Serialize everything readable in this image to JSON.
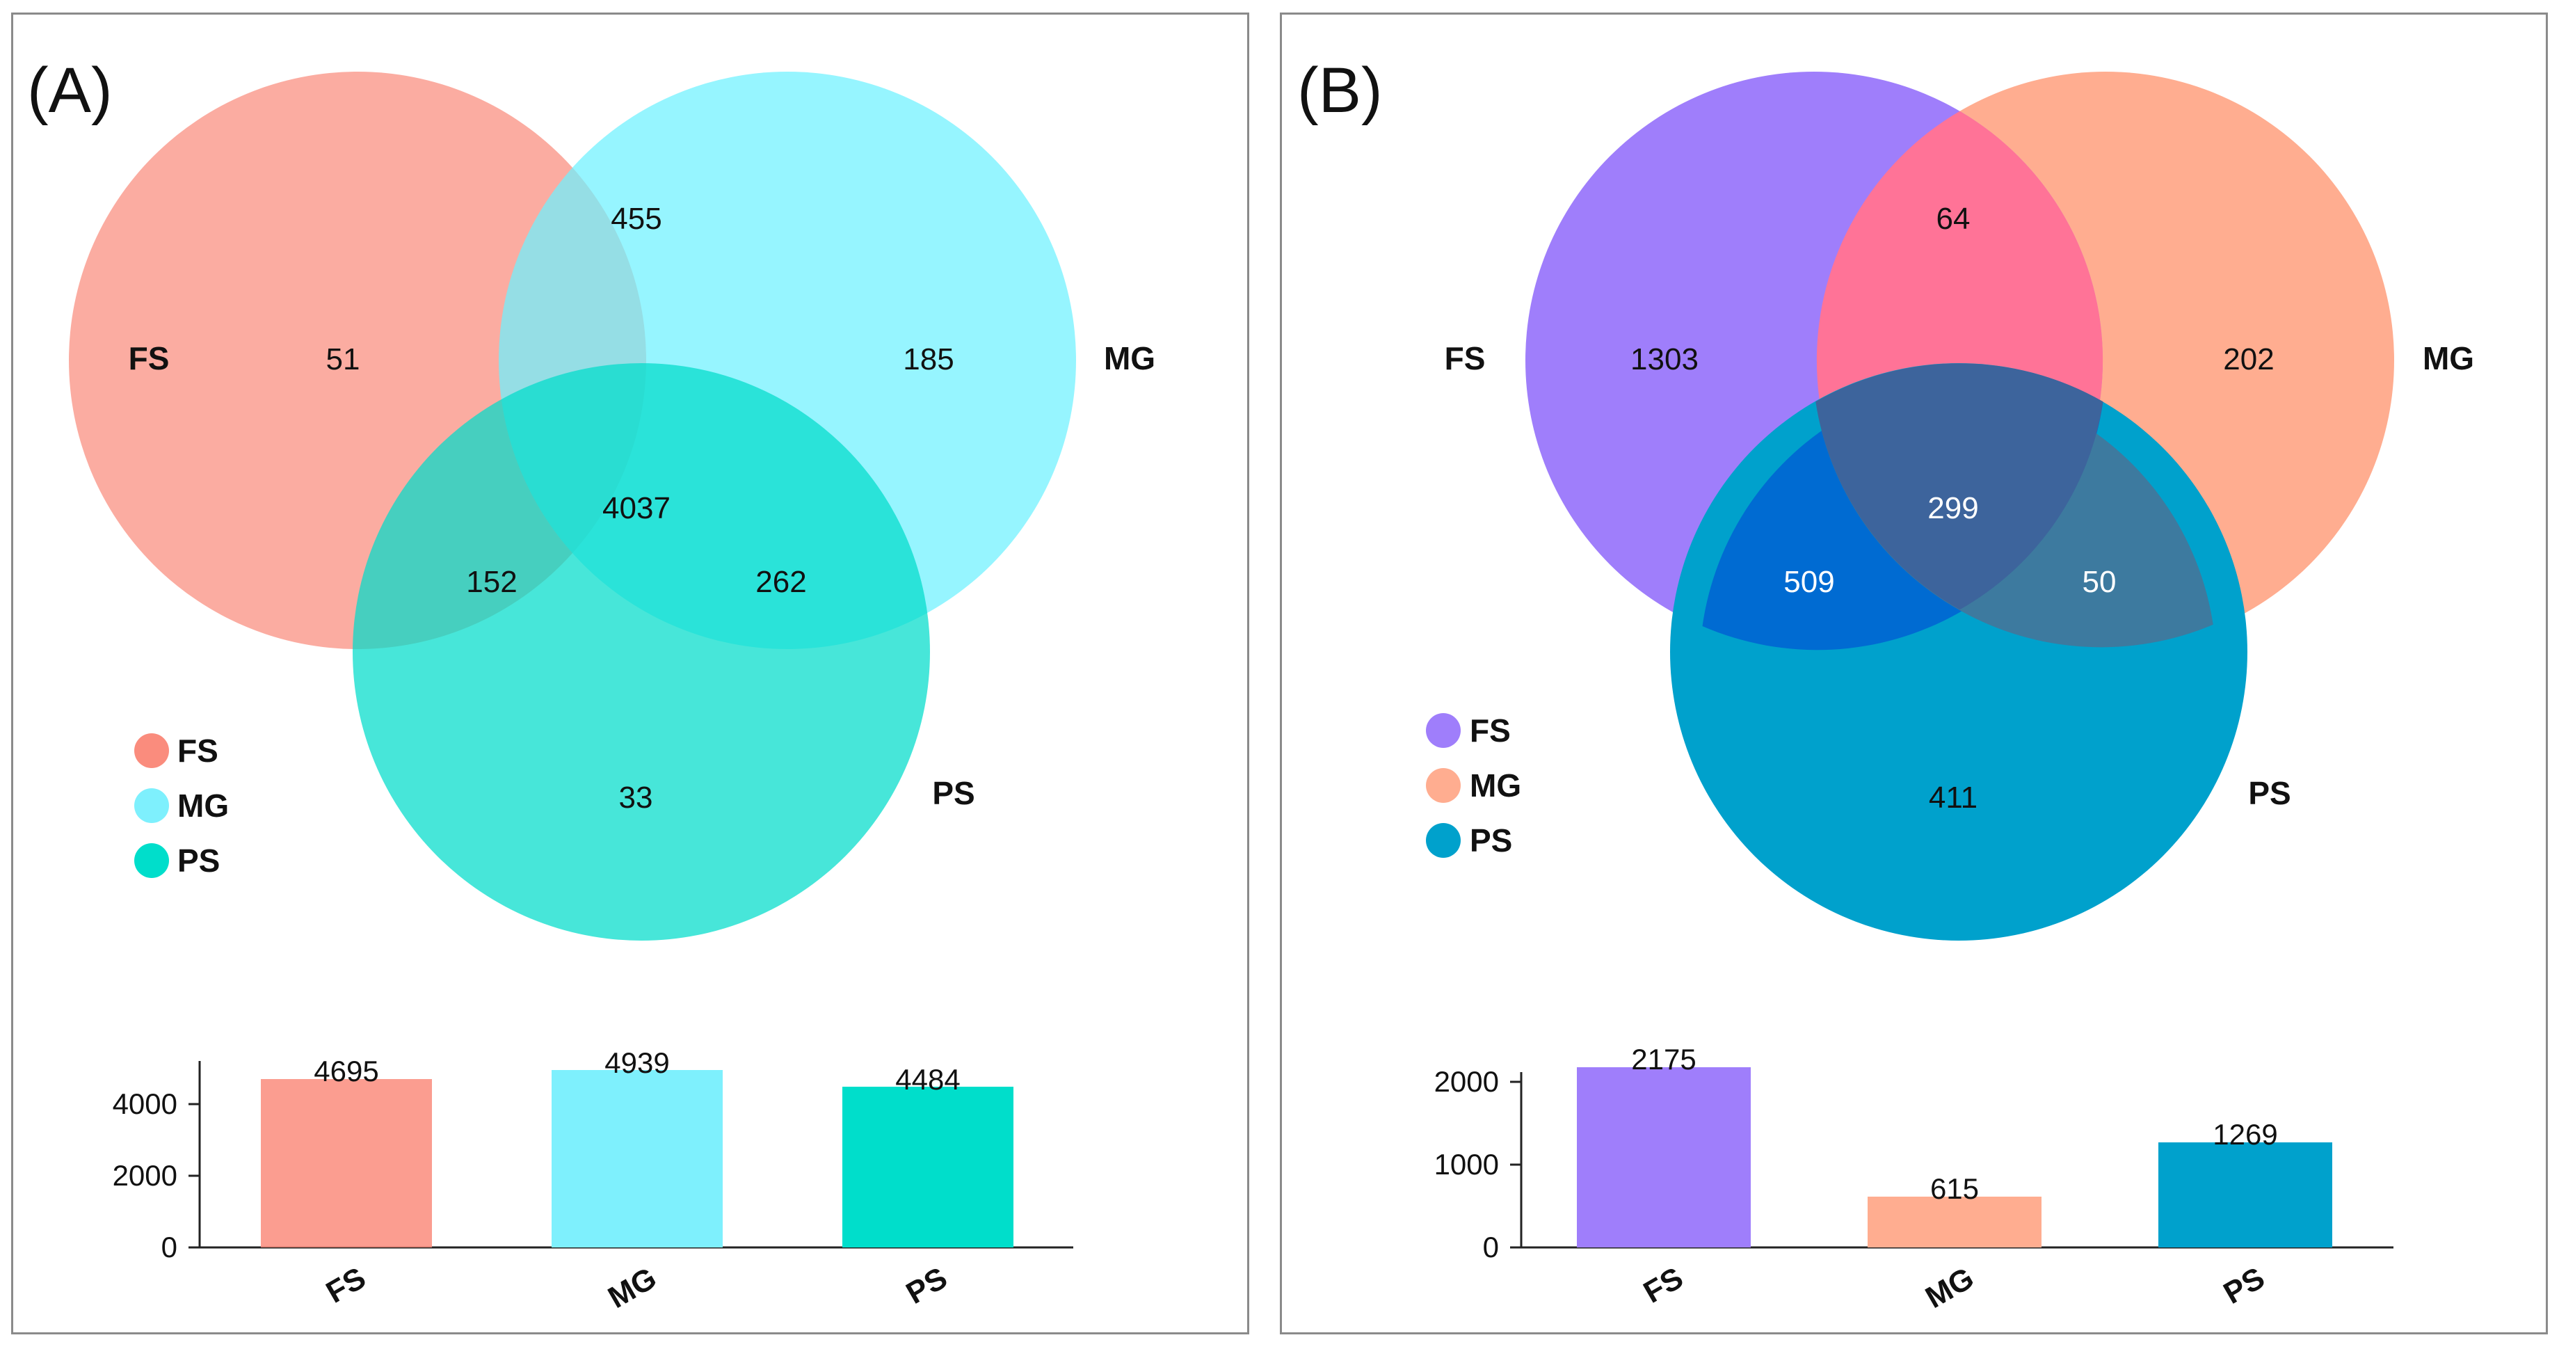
{
  "chart_data": [
    {
      "type": "venn+bar",
      "panel_label": "(A)",
      "sets": [
        {
          "name": "FS",
          "color": "#fa8c7d"
        },
        {
          "name": "MG",
          "color": "#7ef0fd"
        },
        {
          "name": "PS",
          "color": "#00decb"
        }
      ],
      "regions": {
        "FS_only": 51,
        "MG_only": 185,
        "PS_only": 33,
        "FS_MG": 455,
        "FS_PS": 152,
        "MG_PS": 262,
        "FS_MG_PS": 4037
      },
      "legend": [
        "FS",
        "MG",
        "PS"
      ],
      "bar": {
        "categories": [
          "FS",
          "MG",
          "PS"
        ],
        "values": [
          4695,
          4939,
          4484
        ],
        "value_labels": [
          "4695",
          "4939",
          "4484"
        ],
        "yticks": [
          "0",
          "2000",
          "4000"
        ],
        "tick_values": [
          0,
          2000,
          4000
        ],
        "ylim": [
          0,
          5000
        ]
      }
    },
    {
      "type": "venn+bar",
      "panel_label": "(B)",
      "sets": [
        {
          "name": "FS",
          "color": "#9f7efb"
        },
        {
          "name": "MG",
          "color": "#ffad90"
        },
        {
          "name": "PS",
          "color": "#00a1cc"
        }
      ],
      "regions": {
        "FS_only": 1303,
        "MG_only": 202,
        "PS_only": 411,
        "FS_MG": 64,
        "FS_PS": 509,
        "MG_PS": 50,
        "FS_MG_PS": 299
      },
      "legend": [
        "FS",
        "MG",
        "PS"
      ],
      "bar": {
        "categories": [
          "FS",
          "MG",
          "PS"
        ],
        "values": [
          2175,
          615,
          1269
        ],
        "value_labels": [
          "2175",
          "615",
          "1269"
        ],
        "yticks": [
          "0",
          "1000",
          "2000"
        ],
        "tick_values": [
          0,
          1000,
          2000
        ],
        "ylim": [
          0,
          2200
        ]
      }
    }
  ]
}
